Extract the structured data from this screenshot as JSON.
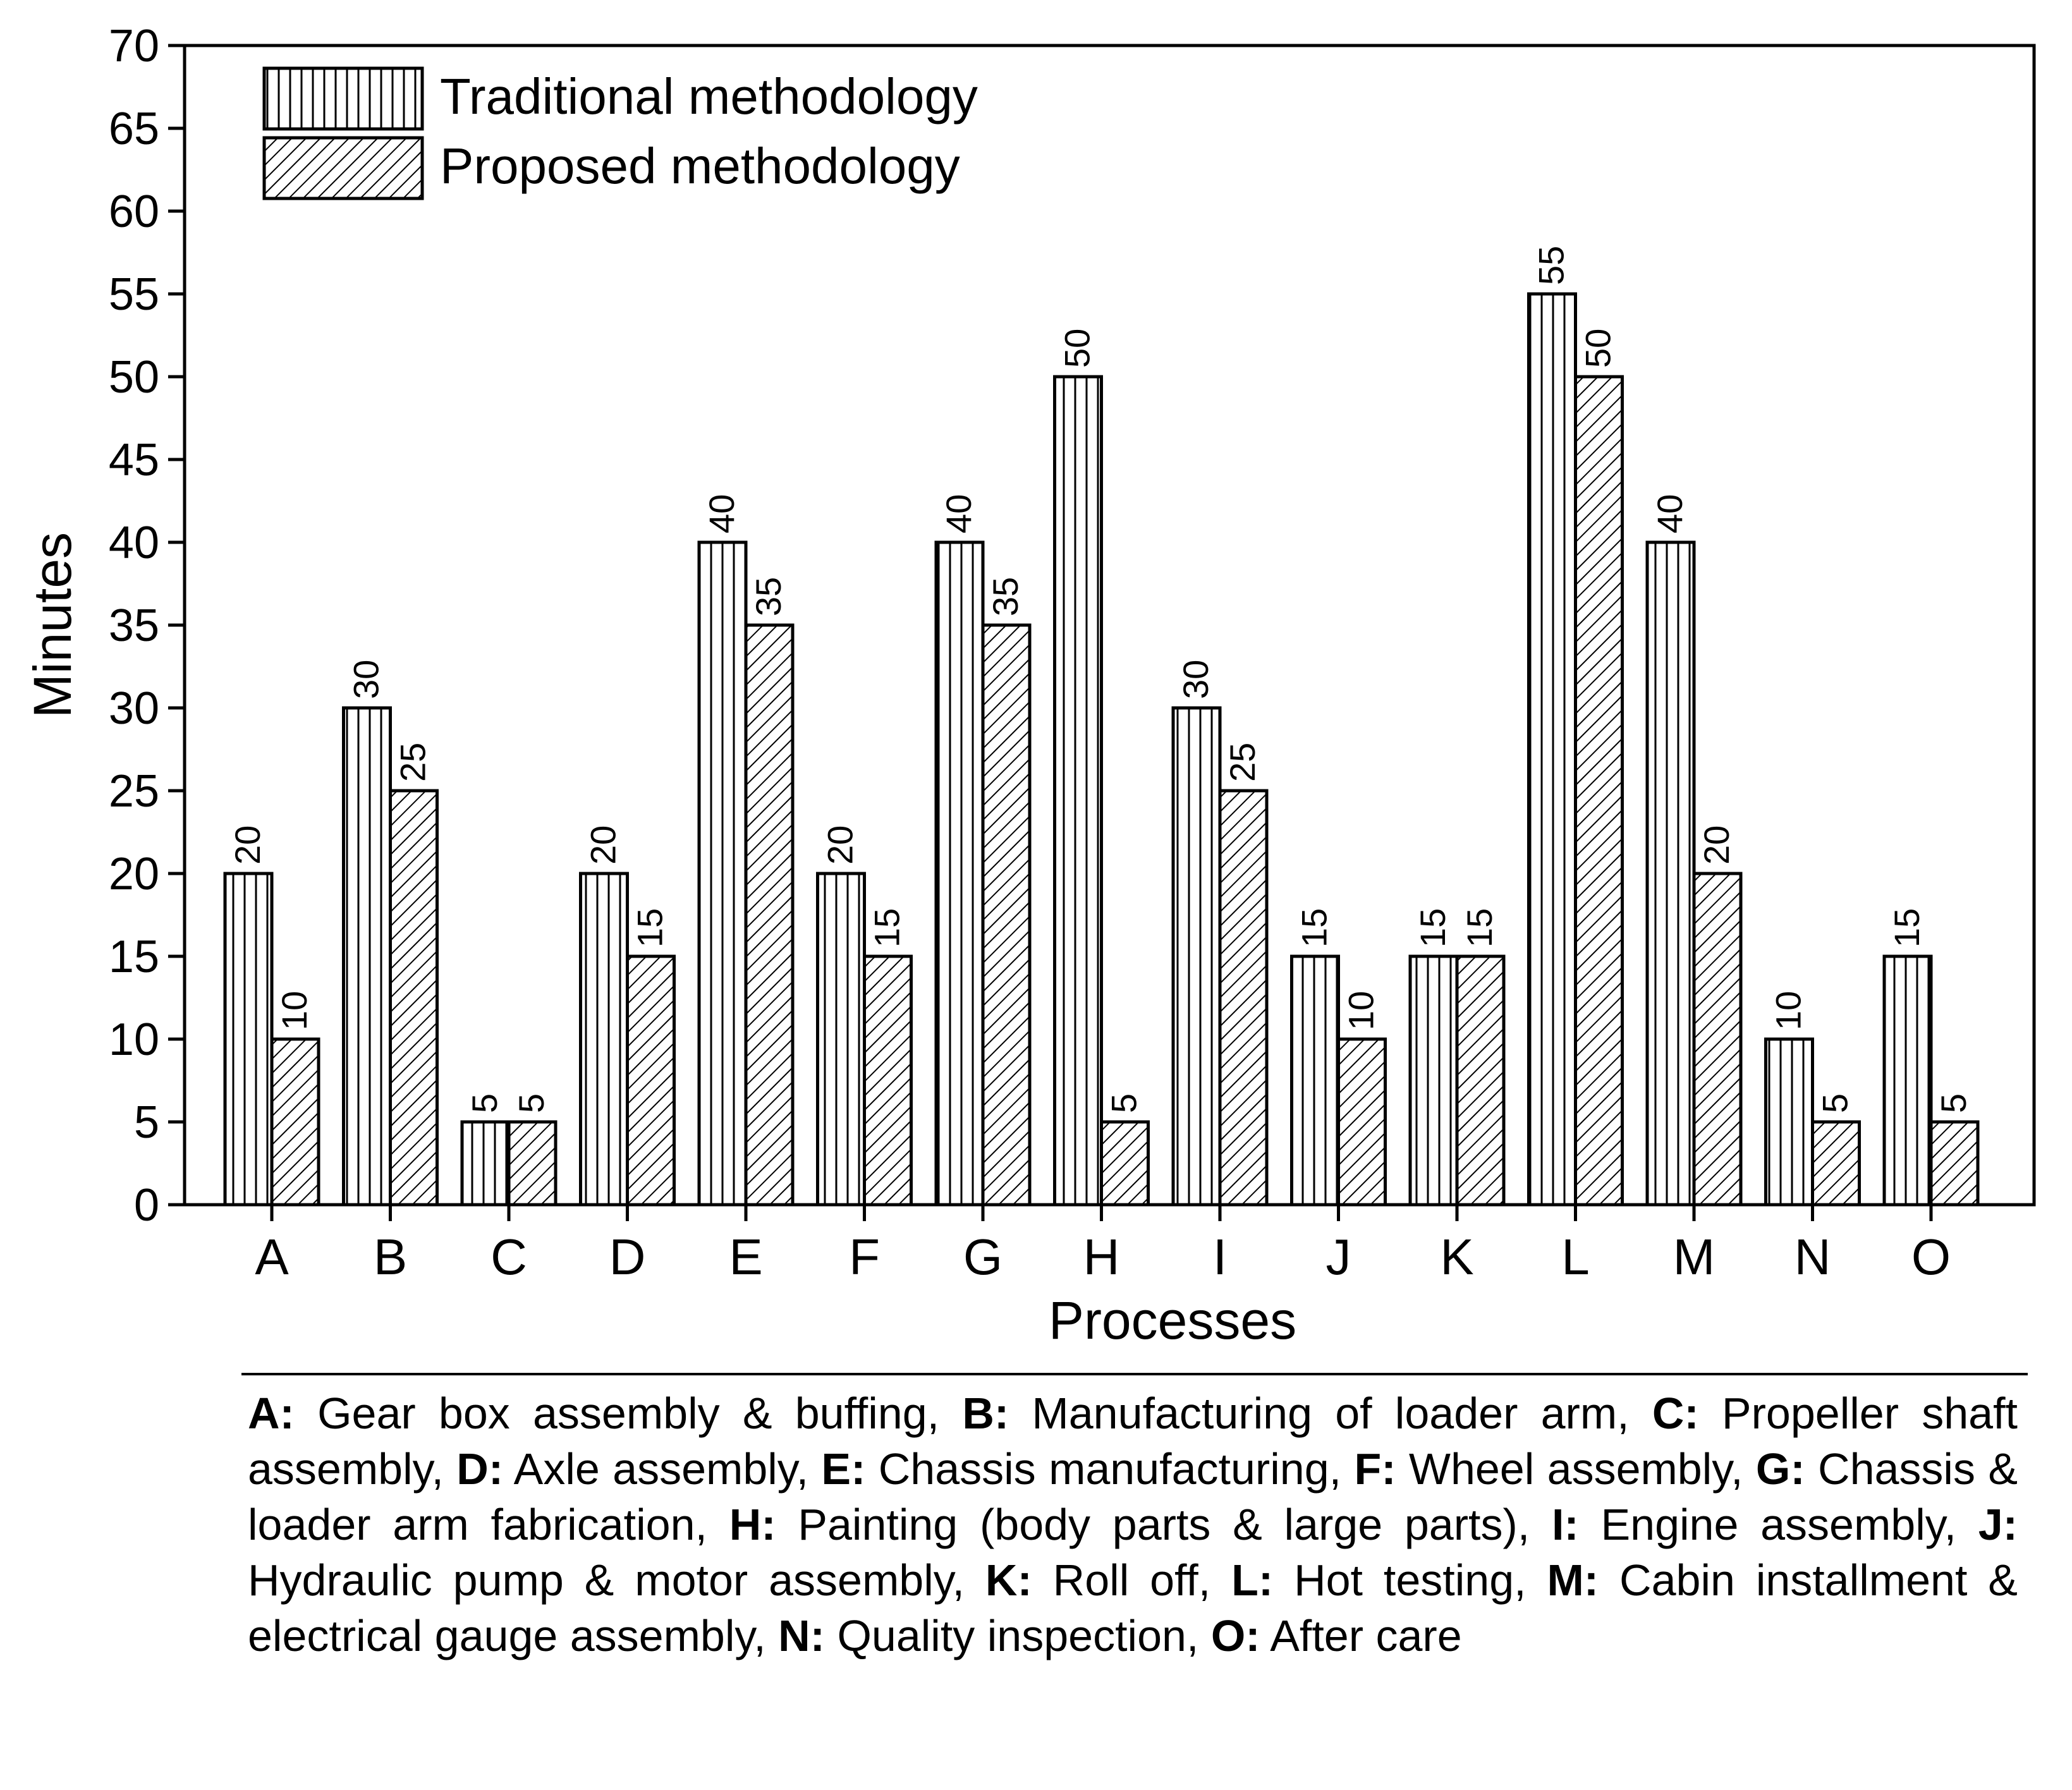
{
  "chart_data": {
    "type": "bar",
    "xlabel": "Processes",
    "ylabel": "Minutes",
    "ylim": [
      0,
      70
    ],
    "yticks": [
      0,
      5,
      10,
      15,
      20,
      25,
      30,
      35,
      40,
      45,
      50,
      55,
      60,
      65,
      70
    ],
    "categories": [
      "A",
      "B",
      "C",
      "D",
      "E",
      "F",
      "G",
      "H",
      "I",
      "J",
      "K",
      "L",
      "M",
      "N",
      "O"
    ],
    "series": [
      {
        "name": "Traditional methodology",
        "pattern": "vertical",
        "values": [
          20,
          30,
          5,
          20,
          40,
          20,
          40,
          50,
          30,
          15,
          15,
          55,
          40,
          10,
          15
        ]
      },
      {
        "name": "Proposed methodology",
        "pattern": "diagonal",
        "values": [
          10,
          25,
          5,
          15,
          35,
          15,
          35,
          5,
          25,
          10,
          15,
          50,
          20,
          5,
          5
        ]
      }
    ],
    "legend_position": "top-left",
    "colors": {
      "stroke": "#000000",
      "fill": "#ffffff"
    }
  },
  "caption": [
    {
      "key": "A:",
      "text": "Gear box assembly & buffing"
    },
    {
      "key": "B:",
      "text": "Manufacturing of loader arm"
    },
    {
      "key": "C:",
      "text": "Propeller shaft assembly"
    },
    {
      "key": "D:",
      "text": "Axle assembly"
    },
    {
      "key": "E:",
      "text": "Chassis manufacturing"
    },
    {
      "key": "F:",
      "text": "Wheel assembly"
    },
    {
      "key": "G:",
      "text": "Chassis & loader arm fabrication"
    },
    {
      "key": "H:",
      "text": "Painting (body parts & large parts)"
    },
    {
      "key": "I:",
      "text": "Engine assembly"
    },
    {
      "key": "J:",
      "text": "Hydraulic pump & motor assembly"
    },
    {
      "key": "K:",
      "text": "Roll off"
    },
    {
      "key": "L:",
      "text": "Hot testing"
    },
    {
      "key": "M:",
      "text": "Cabin installment & electrical gauge assembly"
    },
    {
      "key": "N:",
      "text": "Quality inspection"
    },
    {
      "key": "O:",
      "text": "After care"
    }
  ]
}
